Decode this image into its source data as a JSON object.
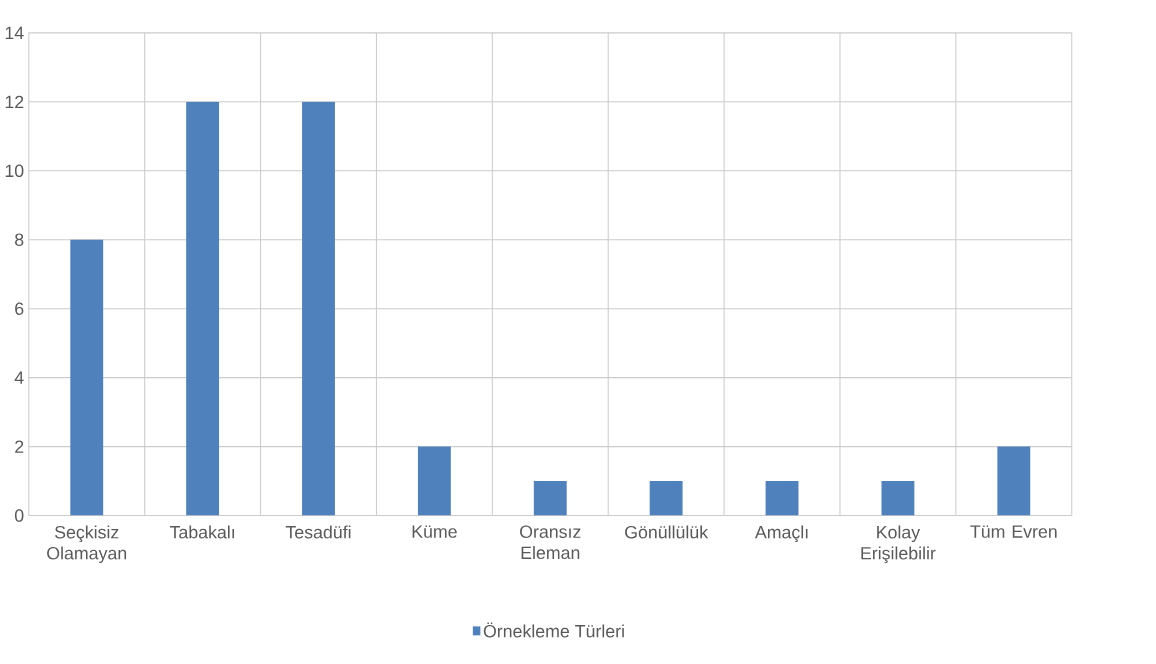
{
  "chart_data": {
    "type": "bar",
    "categories": [
      "Seçkisiz Olamayan",
      "Tabakalı",
      "Tesadüfi",
      "Küme",
      "Oransız Eleman",
      "Gönüllülük",
      "Amaçlı",
      "Kolay Erişilebilir",
      "Tüm Evren"
    ],
    "series": [
      {
        "name": "Örnekleme Türleri",
        "color": "#4f81bd",
        "values": [
          8,
          12,
          12,
          2,
          1,
          1,
          1,
          1,
          2
        ]
      }
    ],
    "ylim": [
      0,
      14
    ],
    "yticks": [
      0,
      2,
      4,
      6,
      8,
      10,
      12,
      14
    ],
    "grid": true,
    "legend": "bottom"
  }
}
